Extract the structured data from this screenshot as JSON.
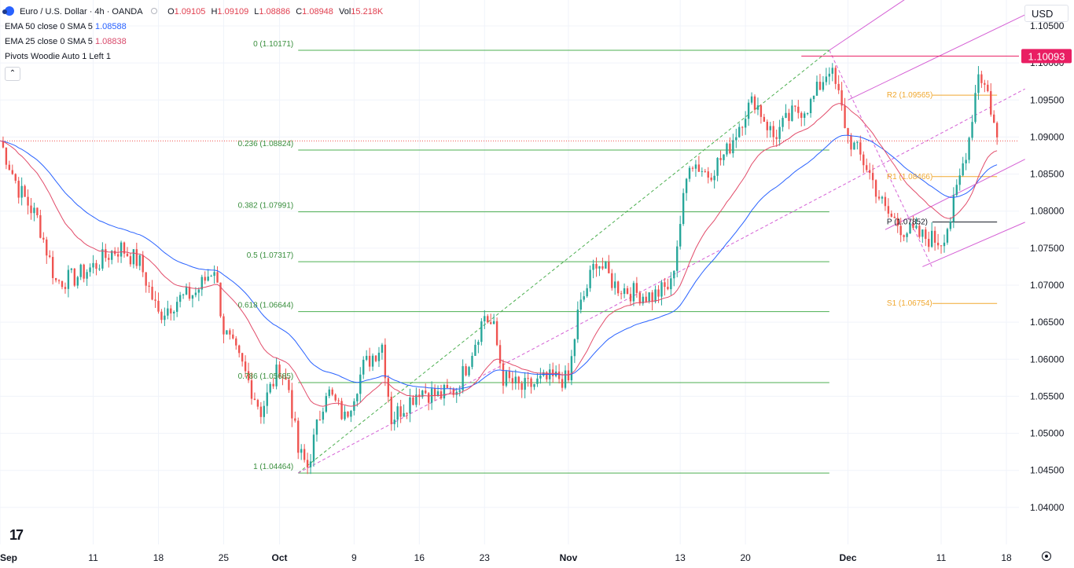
{
  "header": {
    "symbol": "Euro / U.S. Dollar · 4h · OANDA",
    "open_label": "O",
    "open": "1.09105",
    "high_label": "H",
    "high": "1.09109",
    "low_label": "L",
    "low": "1.08886",
    "close_label": "C",
    "close": "1.08948",
    "vol_label": "Vol",
    "vol": "15.218K"
  },
  "indicators": [
    {
      "label": "EMA 50 close 0 SMA 5",
      "value": "1.08588",
      "color": "#2962ff"
    },
    {
      "label": "EMA 25 close 0 SMA 5",
      "value": "1.08838",
      "color": "#d84a6b"
    },
    {
      "label": "Pivots Woodie Auto 1 Left 1",
      "value": ""
    }
  ],
  "collapse_glyph": "⌃",
  "currency": "USD",
  "logo_text": "17",
  "colors": {
    "up": "#26a69a",
    "down": "#ef5350",
    "ema50": "#2962ff",
    "ema25": "#e24c6a",
    "fib": "#4caf50",
    "pivot": "#f0a830",
    "pivot_p": "#131722",
    "channel": "#d560d5",
    "price_tag": "#e91e63",
    "last_price_dotted": "#ef5350",
    "grid": "#f0f3fa"
  },
  "chart_data": {
    "type": "candlestick",
    "title": "Euro / U.S. Dollar · 4h · OANDA",
    "ylim": [
      1.035,
      1.1085
    ],
    "y_ticks": [
      "1.04000",
      "1.04500",
      "1.05000",
      "1.05500",
      "1.06000",
      "1.06500",
      "1.07000",
      "1.07500",
      "1.08000",
      "1.08500",
      "1.09000",
      "1.09500",
      "1.10000",
      "1.10500"
    ],
    "x_range": [
      "2023-09-01",
      "2023-12-18"
    ],
    "x_ticks": [
      {
        "label": "Sep",
        "date": "2023-09-01",
        "bold": true
      },
      {
        "label": "11",
        "date": "2023-09-11"
      },
      {
        "label": "18",
        "date": "2023-09-18"
      },
      {
        "label": "25",
        "date": "2023-09-25"
      },
      {
        "label": "Oct",
        "date": "2023-10-01",
        "bold": true
      },
      {
        "label": "9",
        "date": "2023-10-09"
      },
      {
        "label": "16",
        "date": "2023-10-16"
      },
      {
        "label": "23",
        "date": "2023-10-23"
      },
      {
        "label": "Nov",
        "date": "2023-11-01",
        "bold": true
      },
      {
        "label": "13",
        "date": "2023-11-13"
      },
      {
        "label": "20",
        "date": "2023-11-20"
      },
      {
        "label": "Dec",
        "date": "2023-12-01",
        "bold": true
      },
      {
        "label": "11",
        "date": "2023-12-11"
      },
      {
        "label": "18",
        "date": "2023-12-18"
      }
    ],
    "price_path": [
      [
        "2023-09-01",
        1.0895
      ],
      [
        "2023-09-03",
        1.083
      ],
      [
        "2023-09-05",
        1.079
      ],
      [
        "2023-09-07",
        1.0705
      ],
      [
        "2023-09-09",
        1.071
      ],
      [
        "2023-09-11",
        1.0725
      ],
      [
        "2023-09-13",
        1.0745
      ],
      [
        "2023-09-14",
        1.075
      ],
      [
        "2023-09-16",
        1.073
      ],
      [
        "2023-09-18",
        1.066
      ],
      [
        "2023-09-20",
        1.068
      ],
      [
        "2023-09-22",
        1.069
      ],
      [
        "2023-09-24",
        1.0725
      ],
      [
        "2023-09-25",
        1.064
      ],
      [
        "2023-09-27",
        1.059
      ],
      [
        "2023-09-29",
        1.053
      ],
      [
        "2023-10-01",
        1.059
      ],
      [
        "2023-10-02",
        1.056
      ],
      [
        "2023-10-03",
        1.0475
      ],
      [
        "2023-10-04",
        1.0455
      ],
      [
        "2023-10-06",
        1.056
      ],
      [
        "2023-10-08",
        1.052
      ],
      [
        "2023-10-10",
        1.059
      ],
      [
        "2023-10-12",
        1.062
      ],
      [
        "2023-10-13",
        1.052
      ],
      [
        "2023-10-15",
        1.0545
      ],
      [
        "2023-10-16",
        1.056
      ],
      [
        "2023-10-18",
        1.055
      ],
      [
        "2023-10-20",
        1.056
      ],
      [
        "2023-10-21",
        1.059
      ],
      [
        "2023-10-23",
        1.066
      ],
      [
        "2023-10-24",
        1.064
      ],
      [
        "2023-10-25",
        1.0575
      ],
      [
        "2023-10-27",
        1.056
      ],
      [
        "2023-10-29",
        1.057
      ],
      [
        "2023-10-31",
        1.0575
      ],
      [
        "2023-11-01",
        1.057
      ],
      [
        "2023-11-02",
        1.066
      ],
      [
        "2023-11-04",
        1.0735
      ],
      [
        "2023-11-06",
        1.07
      ],
      [
        "2023-11-08",
        1.069
      ],
      [
        "2023-11-10",
        1.0685
      ],
      [
        "2023-11-12",
        1.07
      ],
      [
        "2023-11-14",
        1.087
      ],
      [
        "2023-11-16",
        1.085
      ],
      [
        "2023-11-18",
        1.088
      ],
      [
        "2023-11-20",
        1.0935
      ],
      [
        "2023-11-21",
        1.095
      ],
      [
        "2023-11-23",
        1.09
      ],
      [
        "2023-11-25",
        1.093
      ],
      [
        "2023-11-27",
        1.0945
      ],
      [
        "2023-11-29",
        1.0995
      ],
      [
        "2023-11-30",
        1.0955
      ],
      [
        "2023-12-01",
        1.09
      ],
      [
        "2023-12-03",
        1.086
      ],
      [
        "2023-12-05",
        1.08
      ],
      [
        "2023-12-07",
        1.0775
      ],
      [
        "2023-12-09",
        1.0765
      ],
      [
        "2023-12-11",
        1.076
      ],
      [
        "2023-12-12",
        1.079
      ],
      [
        "2023-12-14",
        1.09
      ],
      [
        "2023-12-15",
        1.099
      ],
      [
        "2023-12-16",
        1.096
      ],
      [
        "2023-12-17",
        1.0895
      ]
    ],
    "fib_levels": [
      {
        "label": "0 (1.10171)",
        "price": 1.10171
      },
      {
        "label": "0.236 (1.08824)",
        "price": 1.08824
      },
      {
        "label": "0.382 (1.07991)",
        "price": 1.07991
      },
      {
        "label": "0.5 (1.07317)",
        "price": 1.07317
      },
      {
        "label": "0.618 (1.06644)",
        "price": 1.06644
      },
      {
        "label": "0.786 (1.05685)",
        "price": 1.05685
      },
      {
        "label": "1 (1.04464)",
        "price": 1.04464
      }
    ],
    "fib_range": [
      "2023-10-03",
      "2023-11-29"
    ],
    "pivots": [
      {
        "label": "R2 (1.09565)",
        "price": 1.09565
      },
      {
        "label": "R1 (1.08466)",
        "price": 1.08466
      },
      {
        "label": "P (1.07852)",
        "price": 1.07852
      },
      {
        "label": "S1 (1.06754)",
        "price": 1.06754
      }
    ],
    "pivot_range": [
      "2023-12-05",
      "2023-12-17"
    ],
    "horizontal_line": {
      "price": 1.10093,
      "from": "2023-11-26",
      "label": "1.10093"
    },
    "last_price": 1.08948,
    "trend_line": [
      [
        "2023-10-03",
        1.04464
      ],
      [
        "2023-11-29",
        1.10171
      ]
    ],
    "channel_lines": [
      [
        [
          "2023-11-29",
          1.10171
        ],
        [
          "2023-12-20",
          1.1195
        ]
      ],
      [
        [
          "2023-12-01",
          1.095
        ],
        [
          "2023-12-20",
          1.1065
        ]
      ],
      [
        [
          "2023-12-09",
          1.0725
        ],
        [
          "2023-12-20",
          1.0785
        ]
      ]
    ],
    "channel_mid": [
      [
        "2023-10-03",
        1.04464
      ],
      [
        "2023-12-20",
        1.0965
      ]
    ],
    "channel_lower": [
      [
        "2023-12-05",
        1.0775
      ],
      [
        "2023-12-20",
        1.087
      ]
    ],
    "down_channel_mid": [
      [
        "2023-11-29",
        1.10171
      ],
      [
        "2023-12-10",
        1.0725
      ]
    ]
  }
}
